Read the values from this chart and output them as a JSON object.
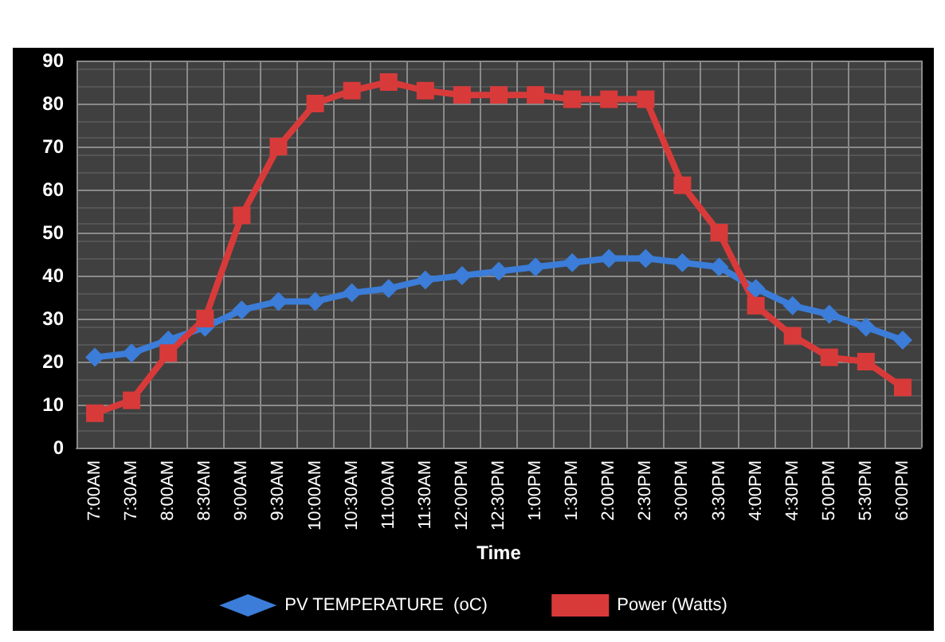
{
  "chart_data": {
    "type": "line",
    "xlabel": "Time",
    "categories": [
      "7:00AM",
      "7:30AM",
      "8:00AM",
      "8:30AM",
      "9:00AM",
      "9:30AM",
      "10:00AM",
      "10:30AM",
      "11:00AM",
      "11:30AM",
      "12:00PM",
      "12:30PM",
      "1:00PM",
      "1:30PM",
      "2:00PM",
      "2:30PM",
      "3:00PM",
      "3:30PM",
      "4:00PM",
      "4:30PM",
      "5:00PM",
      "5:30PM",
      "6:00PM"
    ],
    "series": [
      {
        "name": "PV TEMPERATURE  (oC)",
        "color": "#3b7dd8",
        "marker": "diamond",
        "values": [
          21,
          22,
          25,
          28,
          32,
          34,
          34,
          36,
          37,
          39,
          40,
          41,
          42,
          43,
          44,
          44,
          43,
          42,
          37,
          33,
          31,
          28,
          25
        ]
      },
      {
        "name": "Power (Watts)",
        "color": "#d83a3a",
        "marker": "square",
        "values": [
          8,
          11,
          22,
          30,
          54,
          70,
          80,
          83,
          85,
          83,
          82,
          82,
          82,
          81,
          81,
          81,
          61,
          50,
          33,
          26,
          21,
          20,
          14
        ]
      }
    ],
    "ylim": [
      0,
      90
    ],
    "yticks": [
      0,
      10,
      20,
      30,
      40,
      50,
      60,
      70,
      80,
      90
    ],
    "grid": true,
    "legend": "bottom",
    "line_style": "solid"
  }
}
